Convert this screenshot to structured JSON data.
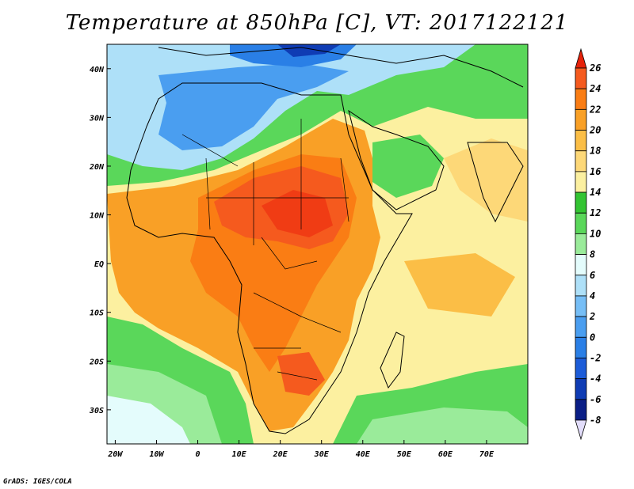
{
  "title": "Temperature at 850hPa [C], VT: 2017122121",
  "credit": "GrADS: IGES/COLA",
  "map": {
    "lon_range": [
      -22,
      80
    ],
    "lat_range": [
      -37,
      45
    ],
    "lat_ticks": [
      {
        "value": 40,
        "label": "40N"
      },
      {
        "value": 30,
        "label": "30N"
      },
      {
        "value": 20,
        "label": "20N"
      },
      {
        "value": 10,
        "label": "10N"
      },
      {
        "value": 0,
        "label": "EQ"
      },
      {
        "value": -10,
        "label": "10S"
      },
      {
        "value": -20,
        "label": "20S"
      },
      {
        "value": -30,
        "label": "30S"
      }
    ],
    "lon_ticks": [
      {
        "value": -20,
        "label": "20W"
      },
      {
        "value": -10,
        "label": "10W"
      },
      {
        "value": 0,
        "label": "0"
      },
      {
        "value": 10,
        "label": "10E"
      },
      {
        "value": 20,
        "label": "20E"
      },
      {
        "value": 30,
        "label": "30E"
      },
      {
        "value": 40,
        "label": "40E"
      },
      {
        "value": 50,
        "label": "50E"
      },
      {
        "value": 60,
        "label": "60E"
      },
      {
        "value": 70,
        "label": "70E"
      }
    ]
  },
  "colorbar": {
    "levels": [
      {
        "label": "26",
        "color": "#f03c14"
      },
      {
        "label": "24",
        "color": "#f55a1e"
      },
      {
        "label": "22",
        "color": "#fa7d14"
      },
      {
        "label": "20",
        "color": "#f9a026"
      },
      {
        "label": "18",
        "color": "#fbbe46"
      },
      {
        "label": "16",
        "color": "#fdd878"
      },
      {
        "label": "14",
        "color": "#fcf0a0"
      },
      {
        "label": "12",
        "color": "#33c432"
      },
      {
        "label": "10",
        "color": "#5ad75a"
      },
      {
        "label": "8",
        "color": "#9aeb9a"
      },
      {
        "label": "6",
        "color": "#e4fcfc"
      },
      {
        "label": "4",
        "color": "#aee0f8"
      },
      {
        "label": "2",
        "color": "#76bef6"
      },
      {
        "label": "0",
        "color": "#4a9ef0"
      },
      {
        "label": "-2",
        "color": "#2a7fe6"
      },
      {
        "label": "-4",
        "color": "#1c5cd8"
      },
      {
        "label": "-6",
        "color": "#0f3cb4"
      },
      {
        "label": "-8",
        "color": "#0a1e86"
      }
    ],
    "top_arrow_color": "#e6220a",
    "bottom_arrow_color": "#e2ddfa"
  }
}
